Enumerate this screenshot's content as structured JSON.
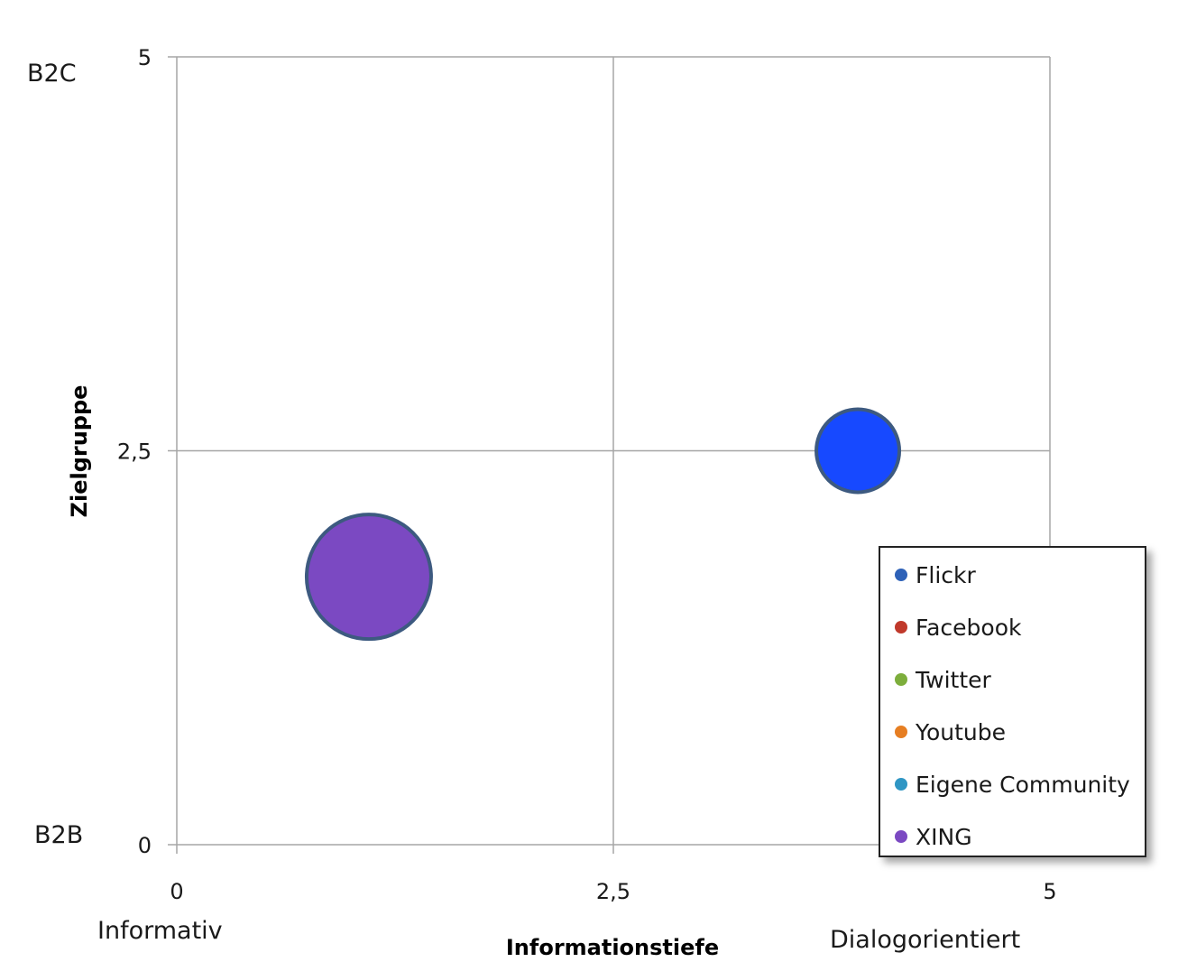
{
  "chart_data": {
    "type": "scatter",
    "xlabel": "Informationstiefe",
    "ylabel": "Zielgruppe",
    "xlim": [
      0,
      5
    ],
    "ylim": [
      0,
      5
    ],
    "x_ticks": [
      "0",
      "2,5",
      "5"
    ],
    "y_ticks": [
      "0",
      "2,5",
      "5"
    ],
    "x_side_labels": {
      "low": "Informativ",
      "high": "Dialogorientiert"
    },
    "y_side_labels": {
      "low": "B2B",
      "high": "B2C"
    },
    "grid": true,
    "legend_position": "bottom-right",
    "series": [
      {
        "name": "Flickr",
        "color": "#2e62b8",
        "points": []
      },
      {
        "name": "Facebook",
        "color": "#c0392b",
        "points": []
      },
      {
        "name": "Twitter",
        "color": "#7dae3c",
        "points": []
      },
      {
        "name": "Youtube",
        "color": "#e67e22",
        "points": []
      },
      {
        "name": "Eigene Community",
        "color": "#2f96c4",
        "points": [
          {
            "x": 3.9,
            "y": 2.5,
            "size": 1,
            "fill": "#1749ff"
          }
        ]
      },
      {
        "name": "XING",
        "color": "#7b49c2",
        "points": [
          {
            "x": 1.1,
            "y": 1.7,
            "size": 1.5,
            "fill": "#7b49c2"
          }
        ]
      }
    ]
  }
}
